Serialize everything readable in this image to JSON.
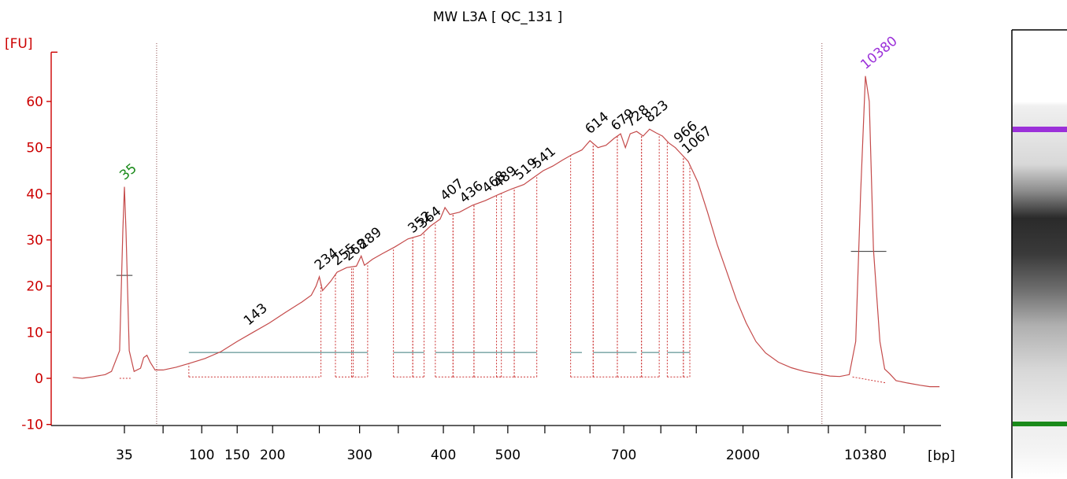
{
  "chart_data": {
    "type": "line",
    "title": "MW L3A  [ QC_131 ]",
    "ylabel": "[FU]",
    "xlabel": "[bp]",
    "ylim": [
      -10,
      70
    ],
    "yticks": [
      -10,
      0,
      10,
      20,
      30,
      40,
      50,
      60
    ],
    "xticks": [
      {
        "label": "35",
        "pos": 1.0
      },
      {
        "label": "",
        "pos": 2.2
      },
      {
        "label": "100",
        "pos": 3.4
      },
      {
        "label": "150",
        "pos": 4.5
      },
      {
        "label": "200",
        "pos": 5.6
      },
      {
        "label": "",
        "pos": 7.05
      },
      {
        "label": "300",
        "pos": 8.3
      },
      {
        "label": "",
        "pos": 9.5
      },
      {
        "label": "400",
        "pos": 10.9
      },
      {
        "label": "",
        "pos": 11.85
      },
      {
        "label": "500",
        "pos": 12.9
      },
      {
        "label": "",
        "pos": 14.05
      },
      {
        "label": "",
        "pos": 15.45
      },
      {
        "label": "700",
        "pos": 16.5
      },
      {
        "label": "",
        "pos": 17.65
      },
      {
        "label": "",
        "pos": 18.75
      },
      {
        "label": "2000",
        "pos": 20.2
      },
      {
        "label": "",
        "pos": 21.6
      },
      {
        "label": "",
        "pos": 22.85
      },
      {
        "label": "10380",
        "pos": 24.0
      },
      {
        "label": "",
        "pos": 25.2
      }
    ],
    "xrange": [
      0,
      26.3
    ],
    "trace": [
      [
        -0.6,
        0.2
      ],
      [
        -0.3,
        0.0
      ],
      [
        0.0,
        0.3
      ],
      [
        0.4,
        0.8
      ],
      [
        0.6,
        1.5
      ],
      [
        0.85,
        6
      ],
      [
        0.95,
        32
      ],
      [
        1.0,
        41.5
      ],
      [
        1.05,
        32
      ],
      [
        1.15,
        6
      ],
      [
        1.3,
        1.5
      ],
      [
        1.5,
        2.2
      ],
      [
        1.6,
        4.5
      ],
      [
        1.7,
        5
      ],
      [
        1.8,
        3.5
      ],
      [
        1.95,
        1.8
      ],
      [
        2.2,
        1.8
      ],
      [
        2.6,
        2.4
      ],
      [
        3.0,
        3.2
      ],
      [
        3.5,
        4.3
      ],
      [
        4.0,
        5.8
      ],
      [
        4.5,
        8.0
      ],
      [
        5.0,
        10.0
      ],
      [
        5.5,
        12.0
      ],
      [
        6.0,
        14.3
      ],
      [
        6.5,
        16.5
      ],
      [
        6.8,
        18.0
      ],
      [
        6.95,
        20.0
      ],
      [
        7.05,
        22.0
      ],
      [
        7.15,
        19.0
      ],
      [
        7.4,
        21.0
      ],
      [
        7.6,
        23.0
      ],
      [
        7.9,
        24.0
      ],
      [
        8.2,
        24.3
      ],
      [
        8.35,
        26.5
      ],
      [
        8.45,
        24.5
      ],
      [
        8.7,
        25.8
      ],
      [
        9.0,
        27.0
      ],
      [
        9.4,
        28.5
      ],
      [
        9.8,
        30.2
      ],
      [
        10.2,
        31.0
      ],
      [
        10.5,
        33.0
      ],
      [
        10.8,
        34.5
      ],
      [
        10.95,
        37.0
      ],
      [
        11.1,
        35.5
      ],
      [
        11.4,
        36.0
      ],
      [
        11.8,
        37.5
      ],
      [
        12.2,
        38.5
      ],
      [
        12.6,
        39.8
      ],
      [
        13.0,
        41.0
      ],
      [
        13.4,
        42.0
      ],
      [
        13.7,
        43.5
      ],
      [
        14.0,
        45.0
      ],
      [
        14.3,
        46.0
      ],
      [
        14.6,
        47.3
      ],
      [
        14.9,
        48.5
      ],
      [
        15.2,
        49.5
      ],
      [
        15.45,
        51.5
      ],
      [
        15.7,
        50.0
      ],
      [
        15.95,
        50.5
      ],
      [
        16.2,
        52.0
      ],
      [
        16.4,
        53.0
      ],
      [
        16.55,
        50.0
      ],
      [
        16.7,
        53.0
      ],
      [
        16.9,
        53.5
      ],
      [
        17.1,
        52.5
      ],
      [
        17.3,
        54.0
      ],
      [
        17.5,
        53.2
      ],
      [
        17.7,
        52.5
      ],
      [
        17.9,
        51.0
      ],
      [
        18.1,
        50.0
      ],
      [
        18.3,
        48.5
      ],
      [
        18.5,
        47.0
      ],
      [
        18.8,
        42.5
      ],
      [
        19.1,
        36.0
      ],
      [
        19.4,
        29.0
      ],
      [
        19.7,
        23.0
      ],
      [
        20.0,
        17.0
      ],
      [
        20.3,
        12.0
      ],
      [
        20.6,
        8.0
      ],
      [
        20.9,
        5.5
      ],
      [
        21.3,
        3.5
      ],
      [
        21.7,
        2.3
      ],
      [
        22.1,
        1.5
      ],
      [
        22.5,
        1.0
      ],
      [
        22.9,
        0.5
      ],
      [
        23.2,
        0.4
      ],
      [
        23.5,
        0.8
      ],
      [
        23.7,
        8.0
      ],
      [
        23.85,
        40.0
      ],
      [
        24.0,
        65.5
      ],
      [
        24.12,
        60.0
      ],
      [
        24.25,
        28.0
      ],
      [
        24.45,
        8.0
      ],
      [
        24.6,
        2.0
      ],
      [
        24.75,
        1.0
      ],
      [
        24.95,
        -0.5
      ],
      [
        25.3,
        -1.0
      ],
      [
        25.7,
        -1.5
      ],
      [
        26.0,
        -1.8
      ],
      [
        26.3,
        -1.8
      ]
    ],
    "peaks": [
      {
        "label": "35",
        "x": 1.0,
        "y": 41.5,
        "color": "#1a8a1a"
      },
      {
        "label": "143",
        "x": 4.85,
        "y": 10.0,
        "color": "#000000"
      },
      {
        "label": "234",
        "x": 7.05,
        "y": 22.0,
        "color": "#000000"
      },
      {
        "label": "255",
        "x": 7.6,
        "y": 23.0,
        "color": "#000000"
      },
      {
        "label": "268",
        "x": 7.95,
        "y": 24.0,
        "color": "#000000"
      },
      {
        "label": "289",
        "x": 8.4,
        "y": 26.5,
        "color": "#000000"
      },
      {
        "label": "352",
        "x": 9.95,
        "y": 30.0,
        "color": "#000000"
      },
      {
        "label": "364",
        "x": 10.25,
        "y": 31.0,
        "color": "#000000"
      },
      {
        "label": "407",
        "x": 10.95,
        "y": 37.0,
        "color": "#000000"
      },
      {
        "label": "436",
        "x": 11.55,
        "y": 36.5,
        "color": "#000000"
      },
      {
        "label": "468",
        "x": 12.25,
        "y": 38.7,
        "color": "#000000"
      },
      {
        "label": "489",
        "x": 12.6,
        "y": 39.8,
        "color": "#000000"
      },
      {
        "label": "519",
        "x": 13.25,
        "y": 41.5,
        "color": "#000000"
      },
      {
        "label": "541",
        "x": 13.8,
        "y": 44.0,
        "color": "#000000"
      },
      {
        "label": "614",
        "x": 15.45,
        "y": 51.5,
        "color": "#000000"
      },
      {
        "label": "679",
        "x": 16.25,
        "y": 52.2,
        "color": "#000000"
      },
      {
        "label": "728",
        "x": 16.7,
        "y": 53.0,
        "color": "#000000"
      },
      {
        "label": "823",
        "x": 17.3,
        "y": 54.0,
        "color": "#000000"
      },
      {
        "label": "966",
        "x": 18.2,
        "y": 49.5,
        "color": "#000000"
      },
      {
        "label": "1067",
        "x": 18.45,
        "y": 47.2,
        "color": "#000000"
      },
      {
        "label": "10380",
        "x": 24.0,
        "y": 65.5,
        "color": "#9b30d9"
      }
    ],
    "colors": {
      "trace": "#c44a4a",
      "axis": "#cc0000",
      "region": "#cc3333",
      "baseline": "#3a7a7a",
      "ladder_low": "#1a8a1a",
      "ladder_high": "#9b30d9"
    }
  }
}
